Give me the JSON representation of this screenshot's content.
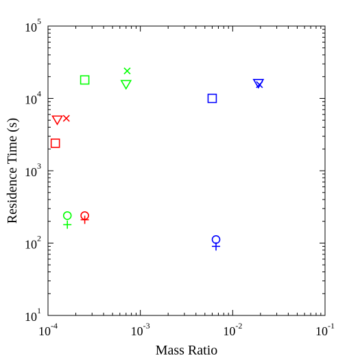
{
  "chart_data": {
    "type": "scatter",
    "title": "",
    "xlabel": "Mass Ratio",
    "ylabel": "Residence Time (s)",
    "xscale": "log",
    "yscale": "log",
    "xlim": [
      0.0001,
      0.1
    ],
    "ylim": [
      10,
      100000
    ],
    "x_ticks": [
      {
        "base": "10",
        "exp": "-4",
        "value": 0.0001
      },
      {
        "base": "10",
        "exp": "-3",
        "value": 0.001
      },
      {
        "base": "10",
        "exp": "-2",
        "value": 0.01
      },
      {
        "base": "10",
        "exp": "-1",
        "value": 0.1
      }
    ],
    "y_ticks": [
      {
        "base": "10",
        "exp": "1",
        "value": 10
      },
      {
        "base": "10",
        "exp": "2",
        "value": 100
      },
      {
        "base": "10",
        "exp": "3",
        "value": 1000
      },
      {
        "base": "10",
        "exp": "4",
        "value": 10000
      },
      {
        "base": "10",
        "exp": "5",
        "value": 100000
      }
    ],
    "grid": false,
    "legend": "none",
    "series": [
      {
        "color": "#ff0000",
        "marker": "square",
        "points": [
          [
            0.00012,
            2400
          ]
        ]
      },
      {
        "color": "#ff0000",
        "marker": "triangle-down",
        "points": [
          [
            0.000126,
            5000
          ]
        ]
      },
      {
        "color": "#ff0000",
        "marker": "x",
        "points": [
          [
            0.000158,
            5300
          ]
        ]
      },
      {
        "color": "#ff0000",
        "marker": "circle",
        "points": [
          [
            0.00025,
            240
          ]
        ]
      },
      {
        "color": "#ff0000",
        "marker": "plus",
        "points": [
          [
            0.00025,
            210
          ]
        ]
      },
      {
        "color": "#00ff00",
        "marker": "square",
        "points": [
          [
            0.00025,
            18000
          ]
        ]
      },
      {
        "color": "#00ff00",
        "marker": "triangle-down",
        "points": [
          [
            0.0007,
            15500
          ]
        ]
      },
      {
        "color": "#00ff00",
        "marker": "x",
        "points": [
          [
            0.00072,
            24000
          ]
        ]
      },
      {
        "color": "#00ff00",
        "marker": "circle",
        "points": [
          [
            0.000162,
            240
          ]
        ]
      },
      {
        "color": "#00ff00",
        "marker": "plus",
        "points": [
          [
            0.000162,
            180
          ]
        ]
      },
      {
        "color": "#0000ff",
        "marker": "square",
        "points": [
          [
            0.006,
            10000
          ]
        ]
      },
      {
        "color": "#0000ff",
        "marker": "triangle-down",
        "points": [
          [
            0.019,
            16000
          ]
        ]
      },
      {
        "color": "#0000ff",
        "marker": "x",
        "points": [
          [
            0.0195,
            15500
          ]
        ]
      },
      {
        "color": "#0000ff",
        "marker": "circle",
        "points": [
          [
            0.0066,
            112
          ]
        ]
      },
      {
        "color": "#0000ff",
        "marker": "plus",
        "points": [
          [
            0.0066,
            90
          ]
        ]
      }
    ]
  }
}
